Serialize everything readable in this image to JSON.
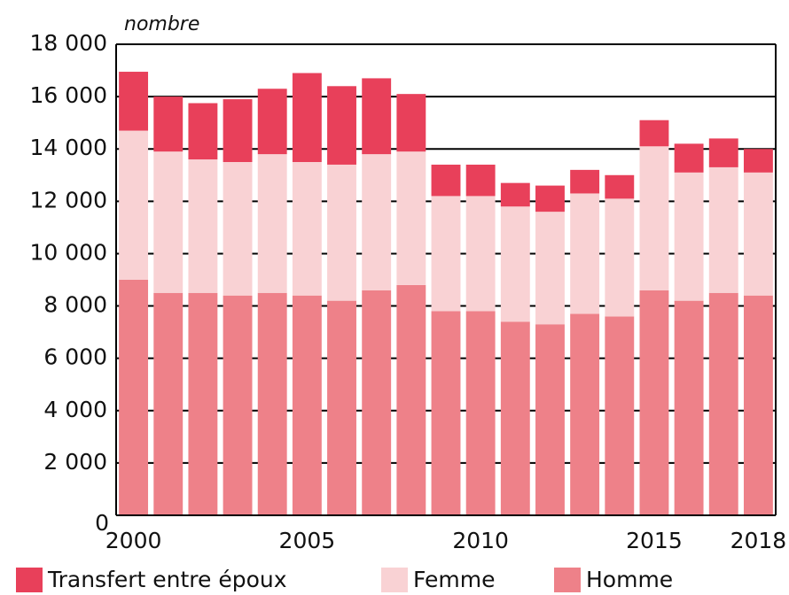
{
  "chart_data": {
    "type": "stacked_bar",
    "y_axis_label": "nombre",
    "categories": [
      "2000",
      null,
      null,
      null,
      null,
      "2005",
      null,
      null,
      null,
      null,
      "2010",
      null,
      null,
      null,
      null,
      "2015",
      null,
      null,
      "2018"
    ],
    "series": [
      {
        "name": "Transfert entre époux",
        "color": "#e8405a",
        "values": [
          2250,
          2100,
          2150,
          2400,
          2500,
          3400,
          3000,
          2900,
          2200,
          1200,
          1200,
          900,
          1000,
          900,
          900,
          1000,
          1100,
          1100,
          900
        ]
      },
      {
        "name": "Femme",
        "color": "#f9d2d4",
        "values": [
          5700,
          5400,
          5100,
          5100,
          5300,
          5100,
          5200,
          5200,
          5100,
          4400,
          4400,
          4400,
          4300,
          4600,
          4500,
          5500,
          4900,
          4800,
          4700
        ]
      },
      {
        "name": "Homme",
        "color": "#ee8189",
        "values": [
          9000,
          8500,
          8500,
          8400,
          8500,
          8400,
          8200,
          8600,
          8800,
          7800,
          7800,
          7400,
          7300,
          7700,
          7600,
          8600,
          8200,
          8500,
          8400
        ]
      }
    ],
    "ylim": [
      0,
      18000
    ],
    "yticks": [
      0,
      {
        "value": 2000,
        "label": "2 000"
      },
      {
        "value": 4000,
        "label": "4 000"
      },
      {
        "value": 6000,
        "label": "6 000"
      },
      {
        "value": 8000,
        "label": "8 000"
      },
      {
        "value": 10000,
        "label": "10 000"
      },
      {
        "value": 12000,
        "label": "12 000"
      },
      {
        "value": 14000,
        "label": "14 000"
      },
      {
        "value": 16000,
        "label": "16 000"
      },
      {
        "value": 18000,
        "label": "18 000"
      }
    ],
    "grid": true
  }
}
